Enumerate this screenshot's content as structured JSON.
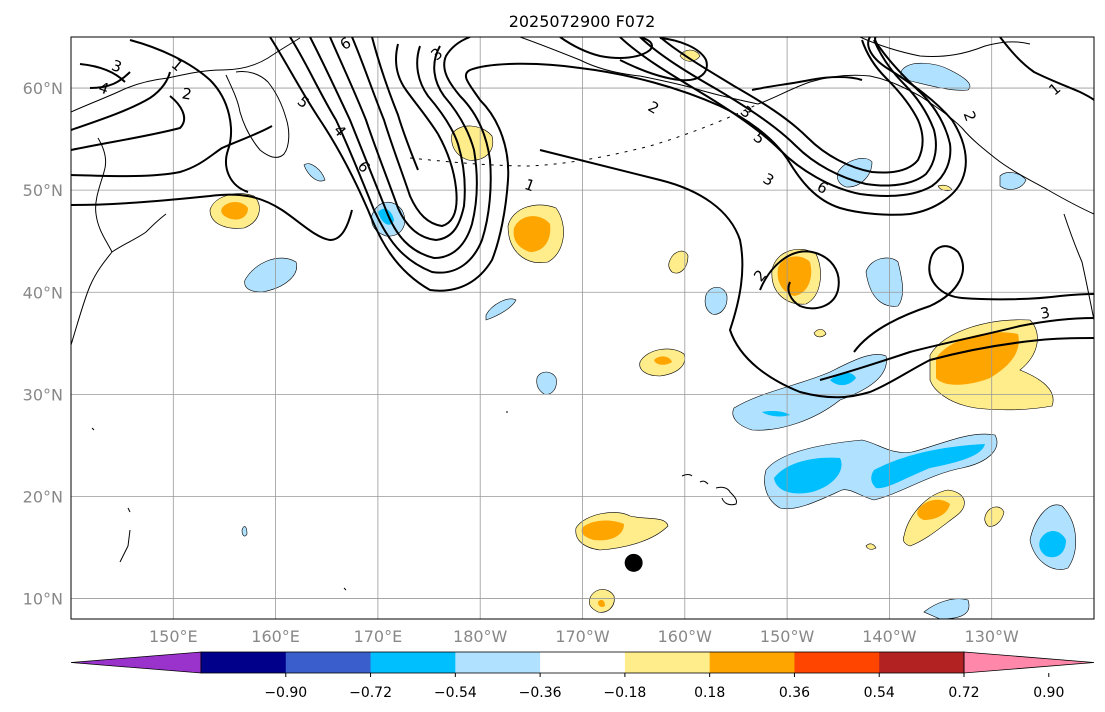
{
  "title": "2025072900 F072",
  "map": {
    "lat_labels": [
      "60°N",
      "50°N",
      "40°N",
      "30°N",
      "20°N",
      "10°N"
    ],
    "lon_labels": [
      "150°E",
      "160°E",
      "170°E",
      "180°W",
      "170°W",
      "160°W",
      "150°W",
      "140°W",
      "130°W"
    ],
    "lat_range": [
      8,
      65
    ],
    "lon_range_east": [
      140,
      240
    ],
    "gridlines": true
  },
  "contour_labels": [
    "3",
    "1",
    "4",
    "2",
    "6",
    "3",
    "5",
    "6",
    "4",
    "1",
    "2",
    "3",
    "5",
    "6",
    "3",
    "2",
    "1",
    "2",
    "3"
  ],
  "colorbar": {
    "tick_labels": [
      "−0.90",
      "−0.72",
      "−0.54",
      "−0.36",
      "−0.18",
      "0.18",
      "0.36",
      "0.54",
      "0.72",
      "0.90"
    ],
    "colors": [
      "#9933cc",
      "#00008b",
      "#3a5fcd",
      "#00bfff",
      "#b0e2ff",
      "#ffffff",
      "#ffec8b",
      "#ffa500",
      "#ff4500",
      "#b22222",
      "#ff88aa"
    ],
    "extend": "both"
  },
  "colors": {
    "light_blue": "#b0e2ff",
    "blue": "#00bfff",
    "yellow": "#ffec8b",
    "orange": "#ffa500",
    "grid": "#999999"
  },
  "marker": {
    "name": "storm-position-marker",
    "lat": 13.5,
    "lon": -165
  }
}
